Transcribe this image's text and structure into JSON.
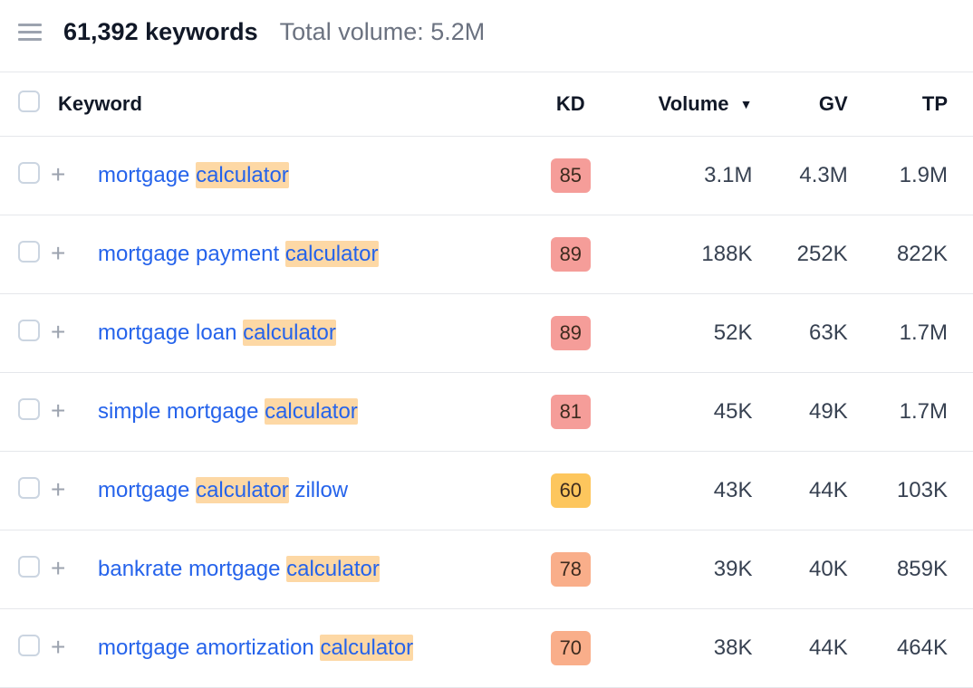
{
  "header": {
    "keyword_count": "61,392 keywords",
    "total_volume": "Total volume: 5.2M"
  },
  "columns": {
    "keyword": "Keyword",
    "kd": "KD",
    "volume": "Volume",
    "gv": "GV",
    "tp": "TP"
  },
  "sort": {
    "column": "volume",
    "caret": "▼"
  },
  "highlight_term": "calculator",
  "kd_colors": {
    "red": "#f59d99",
    "orange": "#f9ae8a",
    "yellow": "#fdc65d"
  },
  "rows": [
    {
      "keyword": "mortgage calculator",
      "kd": 85,
      "kd_tone": "red",
      "volume": "3.1M",
      "gv": "4.3M",
      "tp": "1.9M"
    },
    {
      "keyword": "mortgage payment calculator",
      "kd": 89,
      "kd_tone": "red",
      "volume": "188K",
      "gv": "252K",
      "tp": "822K"
    },
    {
      "keyword": "mortgage loan calculator",
      "kd": 89,
      "kd_tone": "red",
      "volume": "52K",
      "gv": "63K",
      "tp": "1.7M"
    },
    {
      "keyword": "simple mortgage calculator",
      "kd": 81,
      "kd_tone": "red",
      "volume": "45K",
      "gv": "49K",
      "tp": "1.7M"
    },
    {
      "keyword": "mortgage calculator zillow",
      "kd": 60,
      "kd_tone": "yellow",
      "volume": "43K",
      "gv": "44K",
      "tp": "103K"
    },
    {
      "keyword": "bankrate mortgage calculator",
      "kd": 78,
      "kd_tone": "orange",
      "volume": "39K",
      "gv": "40K",
      "tp": "859K"
    },
    {
      "keyword": "mortgage amortization calculator",
      "kd": 70,
      "kd_tone": "orange",
      "volume": "38K",
      "gv": "44K",
      "tp": "464K"
    }
  ]
}
